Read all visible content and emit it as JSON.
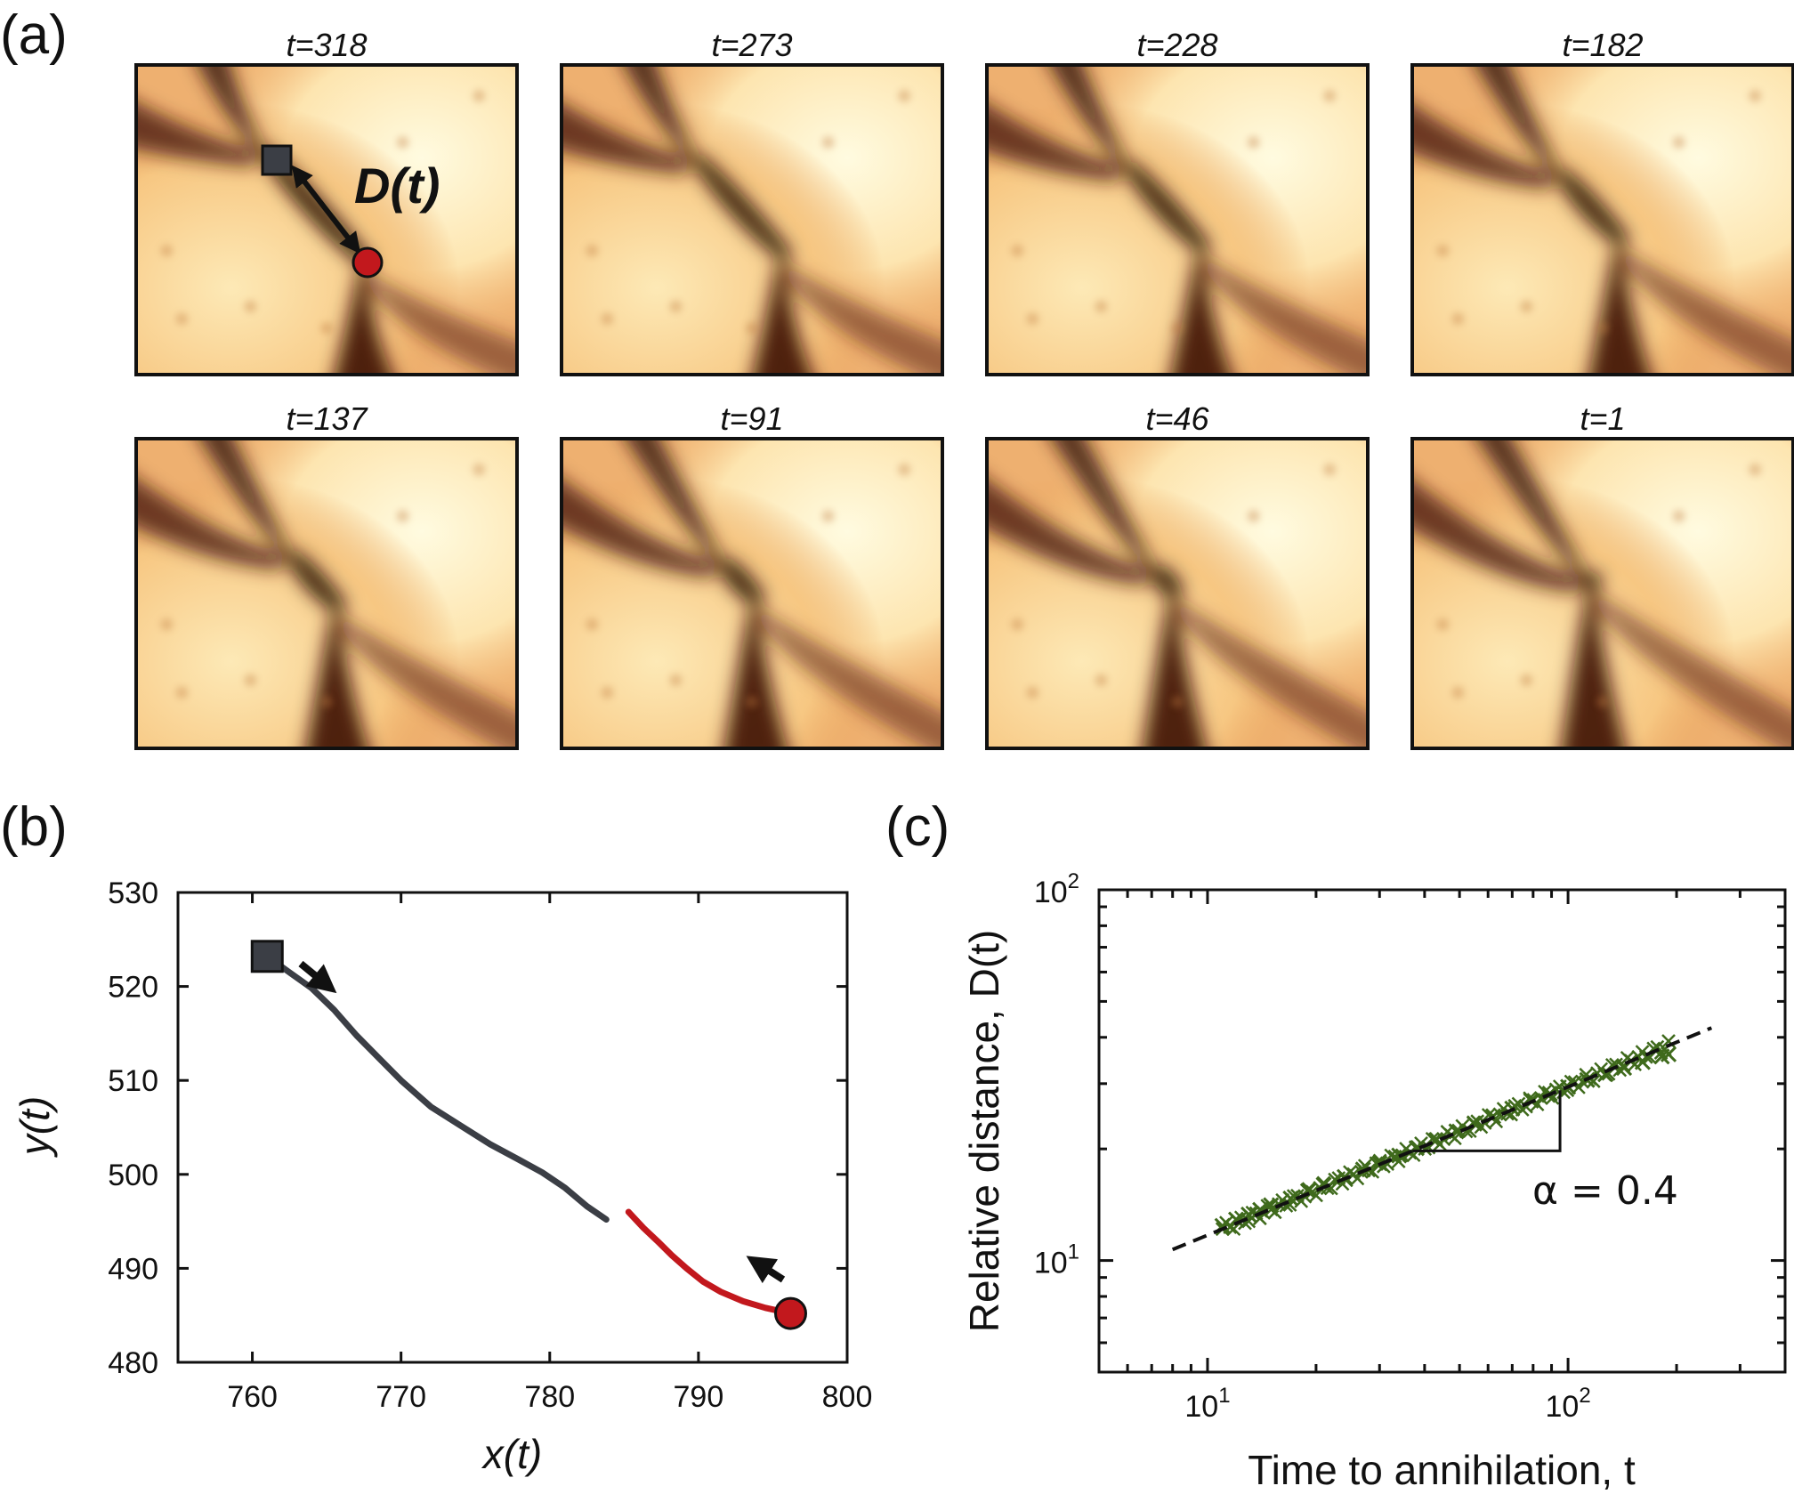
{
  "panels": {
    "a": {
      "letter": "(a)",
      "frames": [
        {
          "title": "t=318",
          "dtime": 318
        },
        {
          "title": "t=273",
          "dtime": 273
        },
        {
          "title": "t=228",
          "dtime": 228
        },
        {
          "title": "t=182",
          "dtime": 182
        },
        {
          "title": "t=137",
          "dtime": 137
        },
        {
          "title": "t=91",
          "dtime": 91
        },
        {
          "title": "t=46",
          "dtime": 46
        },
        {
          "title": "t=1",
          "dtime": 1
        }
      ],
      "annotation": "D(t)"
    },
    "b": {
      "letter": "(b)",
      "xlabel": "x(t)",
      "ylabel": "y(t)"
    },
    "c": {
      "letter": "(c)",
      "xlabel": "Time to annihilation, t",
      "ylabel": "Relative distance, D(t)",
      "slope_label": "α = 0.4"
    }
  },
  "colors": {
    "defect_a": "#3b3e45",
    "defect_b": "#c2181d",
    "data_points": "#3f6a1c",
    "fit_line": "#111111"
  },
  "chart_data": [
    {
      "type": "line",
      "panel": "b",
      "xlabel": "x(t)",
      "ylabel": "y(t)",
      "xlim": [
        755,
        800
      ],
      "ylim": [
        480,
        530
      ],
      "xticks": [
        760,
        770,
        780,
        790,
        800
      ],
      "yticks": [
        480,
        490,
        500,
        510,
        520,
        530
      ],
      "series": [
        {
          "marker": "square",
          "color": "#3b3e45",
          "x": [
            761.0,
            762.5,
            764.0,
            765.5,
            767.0,
            768.5,
            770.0,
            772.0,
            774.0,
            776.0,
            778.0,
            779.5,
            781.0,
            782.5,
            783.8
          ],
          "y": [
            523.2,
            521.5,
            519.8,
            517.5,
            514.8,
            512.4,
            510.0,
            507.2,
            505.2,
            503.2,
            501.5,
            500.2,
            498.6,
            496.6,
            495.2
          ]
        },
        {
          "marker": "circle",
          "color": "#c2181d",
          "x": [
            796.2,
            794.5,
            793.0,
            791.5,
            790.3,
            789.2,
            788.2,
            787.3,
            786.3,
            785.3
          ],
          "y": [
            485.2,
            485.8,
            486.5,
            487.5,
            488.6,
            490.0,
            491.4,
            492.8,
            494.3,
            496.0
          ]
        }
      ]
    },
    {
      "type": "scatter",
      "panel": "c",
      "xlabel": "Time to annihilation, t",
      "ylabel": "Relative distance, D(t)",
      "xscale": "log",
      "yscale": "log",
      "xlim": [
        5,
        400
      ],
      "ylim": [
        5,
        100
      ],
      "xticks": [
        "10^1",
        "10^2"
      ],
      "yticks": [
        "10^1",
        "10^2"
      ],
      "series": [
        {
          "marker": "x",
          "color": "#3f6a1c",
          "t": [
            11,
            12,
            13,
            14,
            15,
            17,
            19,
            21,
            24,
            27,
            30,
            34,
            38,
            43,
            49,
            55,
            62,
            70,
            79,
            89,
            100,
            113,
            127,
            143,
            161,
            182,
            190
          ],
          "D": [
            12.4,
            12.9,
            13.3,
            13.7,
            14.1,
            14.7,
            15.4,
            16.0,
            16.8,
            17.6,
            18.3,
            19.2,
            20.1,
            21.1,
            22.3,
            23.4,
            24.5,
            25.7,
            27.0,
            28.2,
            29.4,
            30.7,
            31.8,
            33.1,
            34.3,
            35.5,
            36.0
          ]
        }
      ],
      "fit": {
        "style": "dashed",
        "t_range": [
          8,
          250
        ],
        "D_at_100": 29.4,
        "slope": 0.4
      },
      "slope_label": "α = 0.4"
    }
  ]
}
